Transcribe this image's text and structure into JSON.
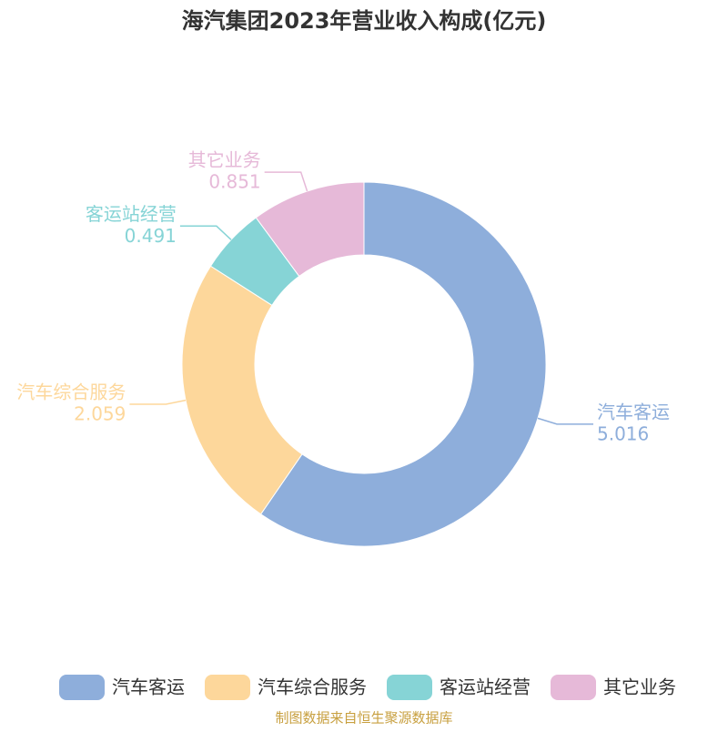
{
  "chart_data": {
    "type": "donut",
    "title": "海汽集团2023年营业收入构成(亿元)",
    "categories": [
      "汽车客运",
      "汽车综合服务",
      "客运站经营",
      "其它业务"
    ],
    "values": [
      5.016,
      2.059,
      0.491,
      0.851
    ],
    "colors": [
      "#8eaedb",
      "#fdd79b",
      "#86d4d6",
      "#e6b9d8"
    ],
    "source": "制图数据来自恒生聚源数据库"
  }
}
